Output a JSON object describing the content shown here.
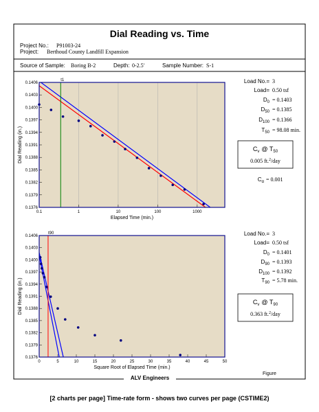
{
  "title": "Dial Reading vs. Time",
  "project": {
    "no_label": "Project No.:",
    "no": "P91003-24",
    "label": "Project:",
    "name": "Berthoud County Landfill Expansion"
  },
  "sample": {
    "source_label": "Source of Sample:",
    "source": "Boring B-2",
    "depth_label": "Depth:",
    "depth": "0-2.5'",
    "number_label": "Sample Number:",
    "number": "S-1"
  },
  "chart_data": [
    {
      "type": "scatter",
      "x_label": "Elapsed Time (min.)",
      "y_label": "Dial Reading (in.)",
      "xlog": true,
      "grid": true,
      "xlim": [
        0.1,
        5000
      ],
      "ylim": [
        0.1376,
        0.1406
      ],
      "xticks": [
        0.1,
        1,
        10,
        100,
        1000
      ],
      "yticks": [
        0.1406,
        0.1403,
        {
          "value": 0.14,
          "label": "0.1400"
        },
        0.1397,
        0.1394,
        0.1391,
        0.1388,
        0.1385,
        0.1382,
        0.1379,
        0.1376
      ],
      "color": "#000080",
      "x": [
        0.1,
        0.2,
        0.4,
        1,
        2,
        4,
        8,
        15,
        30,
        60,
        120,
        240,
        480,
        1450
      ],
      "values": [
        0.14007,
        0.13994,
        0.13978,
        0.13968,
        0.13955,
        0.13933,
        0.13918,
        0.139,
        0.13879,
        0.13854,
        0.13836,
        0.13814,
        0.13803,
        0.13768
      ],
      "fit_lines": [
        {
          "color": "#0000ff",
          "x": [
            0.1,
            2140
          ],
          "y": [
            0.14063,
            0.1376
          ]
        },
        {
          "color": "#ff0000",
          "x": [
            0.1,
            1620
          ],
          "y": [
            0.14052,
            0.1376
          ]
        }
      ],
      "marker_line": {
        "x": 0.35,
        "label": "t1",
        "color": "#008000"
      },
      "info": [
        {
          "text": "Load No.=",
          "value": "3"
        },
        {
          "text": "Load=",
          "value": "0.50 tsf"
        },
        {
          "text": "D",
          "sub": "0",
          "value": "= 0.1403"
        },
        {
          "text": "D",
          "sub": "50",
          "value": "= 0.1385"
        },
        {
          "text": "D",
          "sub": "100",
          "value": "= 0.1366"
        },
        {
          "text": "T",
          "sub": "50",
          "value": "= 98.08 min."
        }
      ],
      "cv_box": {
        "text": "C",
        "sub": "v",
        "text2": "@ T",
        "sub2": "50",
        "value": "0.005 ft.",
        "sup": "2",
        "unit": "/day"
      },
      "calpha": {
        "text": "C",
        "sub": "α",
        "value": "= 0.001"
      }
    },
    {
      "type": "scatter",
      "x_label": "Square Root of Elapsed Time (min.)",
      "y_label": "Dial Reading (in.)",
      "xlog": false,
      "grid": false,
      "xlim": [
        0,
        50
      ],
      "ylim": [
        0.1376,
        0.1406
      ],
      "xticks": [
        0,
        5,
        10,
        15,
        20,
        25,
        30,
        35,
        40,
        45,
        50
      ],
      "yticks": [
        0.1406,
        0.1403,
        {
          "value": 0.14,
          "label": "0.1400"
        },
        0.1397,
        0.1394,
        0.1391,
        0.1388,
        0.1385,
        0.1382,
        0.1379,
        0.1376
      ],
      "color": "#000080",
      "x": [
        0.3,
        0.5,
        0.7,
        1.0,
        1.4,
        2.0,
        3.1,
        5.0,
        7.0,
        10.5,
        15,
        22,
        38
      ],
      "values": [
        0.14006,
        0.1399,
        0.13979,
        0.13967,
        0.13957,
        0.13933,
        0.13909,
        0.1388,
        0.13853,
        0.13833,
        0.13814,
        0.13801,
        0.13765
      ],
      "fit_lines": [
        {
          "color": "#0000ff",
          "x": [
            0,
            6.5
          ],
          "y": [
            0.14018,
            0.1376
          ]
        },
        {
          "color": "#0000ff",
          "x": [
            0,
            5.4
          ],
          "y": [
            0.14011,
            0.1376
          ]
        }
      ],
      "marker_line": {
        "x": 2.4,
        "label": "t90",
        "color": "#ff0000"
      },
      "info": [
        {
          "text": "Load No.=",
          "value": "3"
        },
        {
          "text": "Load=",
          "value": "0.50 tsf"
        },
        {
          "text": "D",
          "sub": "0",
          "value": "= 0.1401"
        },
        {
          "text": "D",
          "sub": "90",
          "value": "= 0.1393"
        },
        {
          "text": "D",
          "sub": "100",
          "value": "= 0.1392"
        },
        {
          "text": "T",
          "sub": "90",
          "value": "= 5.78 min."
        }
      ],
      "cv_box": {
        "text": "C",
        "sub": "v",
        "text2": "@ T",
        "sub2": "90",
        "value": "0.363 ft.",
        "sup": "2",
        "unit": "/day"
      }
    }
  ],
  "footer": "ALV Engineers",
  "figure": "Figure",
  "caption": "[2 charts per page] Time-rate form - shows two curves per page (CSTIME2)"
}
